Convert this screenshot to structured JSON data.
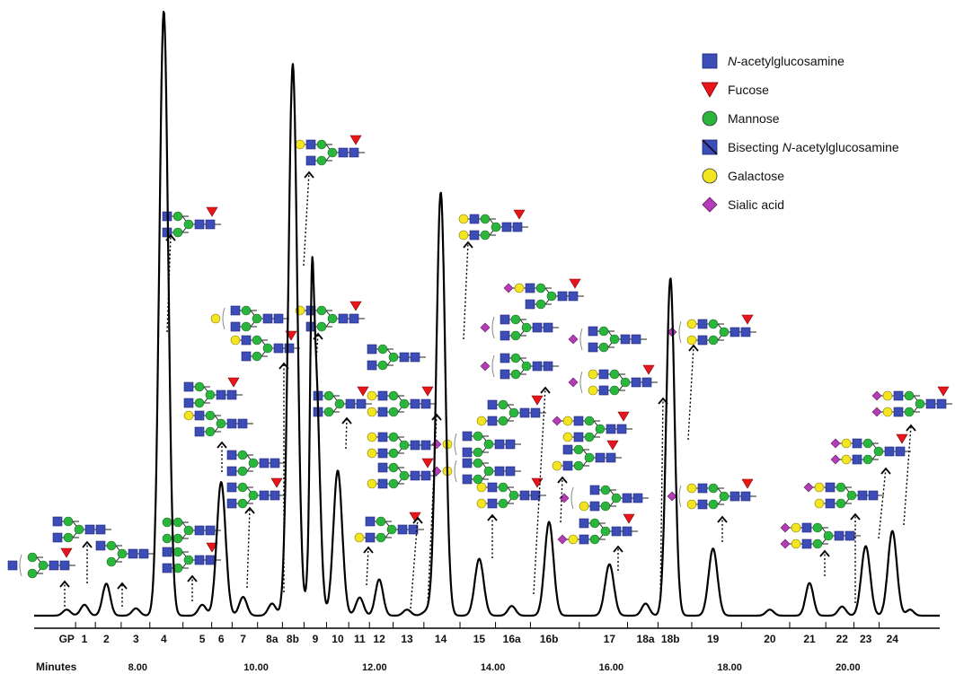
{
  "chart_data": {
    "type": "line",
    "xlabel": "Minutes",
    "xlim": [
      6.25,
      21.55
    ],
    "x_ticks": [
      "8.00",
      "10.00",
      "12.00",
      "14.00",
      "16.00",
      "18.00",
      "20.00"
    ],
    "x_tick_values": [
      8,
      10,
      12,
      14,
      16,
      18,
      20
    ],
    "grid": false,
    "legend_placement": "top-right",
    "peaks": [
      {
        "label": "GP",
        "x": 6.8,
        "height": 0.01
      },
      {
        "label": "1",
        "x": 7.1,
        "height": 0.018
      },
      {
        "label": "2",
        "x": 7.47,
        "height": 0.053
      },
      {
        "label": "3",
        "x": 7.97,
        "height": 0.012
      },
      {
        "label": "4",
        "x": 8.44,
        "height": 1.0
      },
      {
        "label": "5",
        "x": 9.09,
        "height": 0.018
      },
      {
        "label": "6",
        "x": 9.41,
        "height": 0.221
      },
      {
        "label": "7",
        "x": 9.78,
        "height": 0.031
      },
      {
        "label": "8a",
        "x": 10.27,
        "height": 0.02
      },
      {
        "label": "8b",
        "x": 10.62,
        "height": 0.912
      },
      {
        "label": "9",
        "x": 11.0,
        "height": 0.424
      },
      {
        "label": "10",
        "x": 11.38,
        "height": 0.24
      },
      {
        "label": "11",
        "x": 11.75,
        "height": 0.03
      },
      {
        "label": "12",
        "x": 12.08,
        "height": 0.06
      },
      {
        "label": "13",
        "x": 12.55,
        "height": 0.01
      },
      {
        "label": "14",
        "x": 13.12,
        "height": 0.7
      },
      {
        "label": "15",
        "x": 13.77,
        "height": 0.094
      },
      {
        "label": "16a",
        "x": 14.32,
        "height": 0.016
      },
      {
        "label": "16b",
        "x": 14.95,
        "height": 0.155
      },
      {
        "label": "17",
        "x": 15.97,
        "height": 0.085
      },
      {
        "label": "18a",
        "x": 16.58,
        "height": 0.02
      },
      {
        "label": "18b",
        "x": 17.0,
        "height": 0.558
      },
      {
        "label": "19",
        "x": 17.72,
        "height": 0.111
      },
      {
        "label": "20",
        "x": 18.68,
        "height": 0.01
      },
      {
        "label": "21",
        "x": 19.35,
        "height": 0.054
      },
      {
        "label": "22",
        "x": 19.9,
        "height": 0.015
      },
      {
        "label": "23",
        "x": 20.3,
        "height": 0.115
      },
      {
        "label": "24",
        "x": 20.75,
        "height": 0.14
      }
    ]
  },
  "legend": [
    {
      "shape": "square",
      "color": "#3d4db8",
      "parts": [
        {
          "t": "N",
          "italic": true
        },
        {
          "t": "-acetylglucosamine",
          "italic": false
        }
      ]
    },
    {
      "shape": "triangle",
      "color": "#e8161b",
      "parts": [
        {
          "t": "Fucose",
          "italic": false
        }
      ]
    },
    {
      "shape": "circle",
      "color": "#2ab53c",
      "parts": [
        {
          "t": "Mannose",
          "italic": false
        }
      ]
    },
    {
      "shape": "bisect",
      "color": "#3d4db8",
      "parts": [
        {
          "t": "Bisecting ",
          "italic": false
        },
        {
          "t": "N",
          "italic": true
        },
        {
          "t": "-acetylglucosamine",
          "italic": false
        }
      ]
    },
    {
      "shape": "circle",
      "color": "#f4e521",
      "parts": [
        {
          "t": "Galactose",
          "italic": false
        }
      ]
    },
    {
      "shape": "diamond",
      "color": "#b43cb6",
      "parts": [
        {
          "t": "Sialic acid",
          "italic": false
        }
      ]
    }
  ],
  "colors": {
    "glcnac": "#3d4db8",
    "fucose": "#e8161b",
    "mannose": "#2ab53c",
    "galactose": "#f4e521",
    "sialic": "#b43cb6",
    "trace": "#000000"
  }
}
